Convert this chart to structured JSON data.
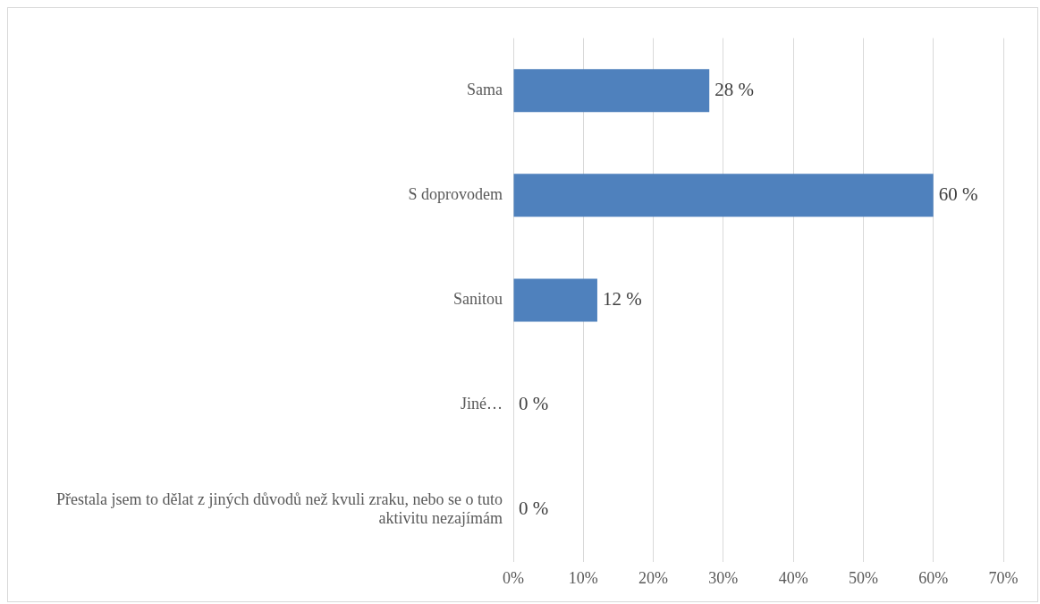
{
  "chart_data": {
    "type": "bar",
    "orientation": "horizontal",
    "categories": [
      "Sama",
      "S doprovodem",
      "Sanitou",
      "Jiné…",
      "Přestala jsem to dělat z jiných důvodů než kvuli zraku, nebo se o tuto aktivitu nezajímám"
    ],
    "values": [
      28,
      60,
      12,
      0,
      0
    ],
    "value_labels": [
      "28 %",
      "60 %",
      "12 %",
      "0 %",
      "0 %"
    ],
    "color": "#4f81bd",
    "xlim": [
      0,
      70
    ],
    "xticks": [
      {
        "value": 0,
        "label": "0%"
      },
      {
        "value": 10,
        "label": "10%"
      },
      {
        "value": 20,
        "label": "20%"
      },
      {
        "value": 30,
        "label": "30%"
      },
      {
        "value": 40,
        "label": "40%"
      },
      {
        "value": 50,
        "label": "50%"
      },
      {
        "value": 60,
        "label": "60%"
      },
      {
        "value": 70,
        "label": "70%"
      }
    ],
    "grid": "x"
  }
}
